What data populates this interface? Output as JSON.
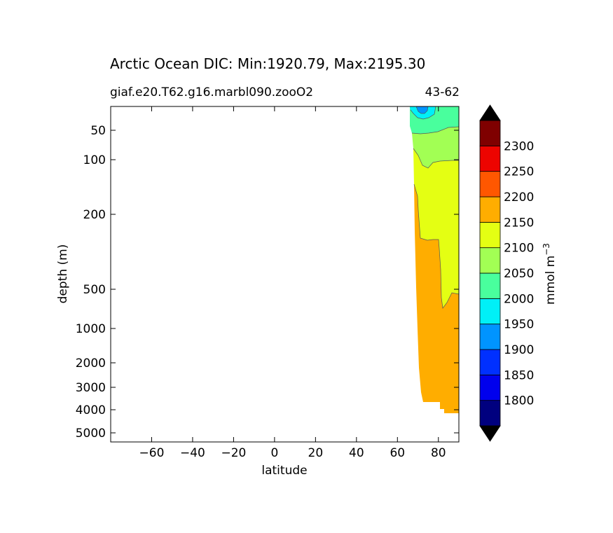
{
  "chart_data": {
    "type": "contour",
    "title": "Arctic Ocean DIC: Min:1920.79, Max:2195.30",
    "subtitle_left": "giaf.e20.T62.g16.marbl090.zooO2",
    "subtitle_right": "43-62",
    "xlabel": "latitude",
    "ylabel": "depth (m)",
    "xlim": [
      -80,
      90
    ],
    "ylim": [
      5000,
      0
    ],
    "y_scale": "piecewise: linear 0-200 m, log-like below",
    "x_ticks": [
      -60,
      -40,
      -20,
      0,
      20,
      40,
      60,
      80
    ],
    "x_tick_labels": [
      "−60",
      "−40",
      "−20",
      "0",
      "20",
      "40",
      "60",
      "80"
    ],
    "y_ticks": [
      50,
      100,
      200,
      500,
      1000,
      2000,
      3000,
      4000,
      5000
    ],
    "y_tick_labels": [
      "50",
      "100",
      "200",
      "500",
      "1000",
      "2000",
      "3000",
      "4000",
      "5000"
    ],
    "colorbar": {
      "label": "mmol m",
      "label_exponent": "−3",
      "levels": [
        1750,
        1800,
        1850,
        1900,
        1950,
        2000,
        2050,
        2100,
        2150,
        2200,
        2250,
        2300,
        2350
      ],
      "tick_labels": [
        "1800",
        "1850",
        "1900",
        "1950",
        "2000",
        "2050",
        "2100",
        "2150",
        "2200",
        "2250",
        "2300"
      ],
      "colors": [
        "#00007f",
        "#0000ed",
        "#0030ff",
        "#0094ff",
        "#00f0f7",
        "#49ff9d",
        "#a2ff54",
        "#e4ff13",
        "#ffad00",
        "#ff5700",
        "#ed0400",
        "#7f0000"
      ],
      "extend": "both",
      "extend_color": "#000000"
    },
    "regions": [
      {
        "name": "2150-2200",
        "color": "#ffad00"
      },
      {
        "name": "2100-2150",
        "color": "#e4ff13"
      },
      {
        "name": "2050-2100",
        "color": "#a2ff54"
      },
      {
        "name": "2000-2050",
        "color": "#49ff9d"
      },
      {
        "name": "1950-2000",
        "color": "#00f0f7"
      },
      {
        "name": "1900-1950",
        "color": "#0094ff"
      }
    ]
  }
}
